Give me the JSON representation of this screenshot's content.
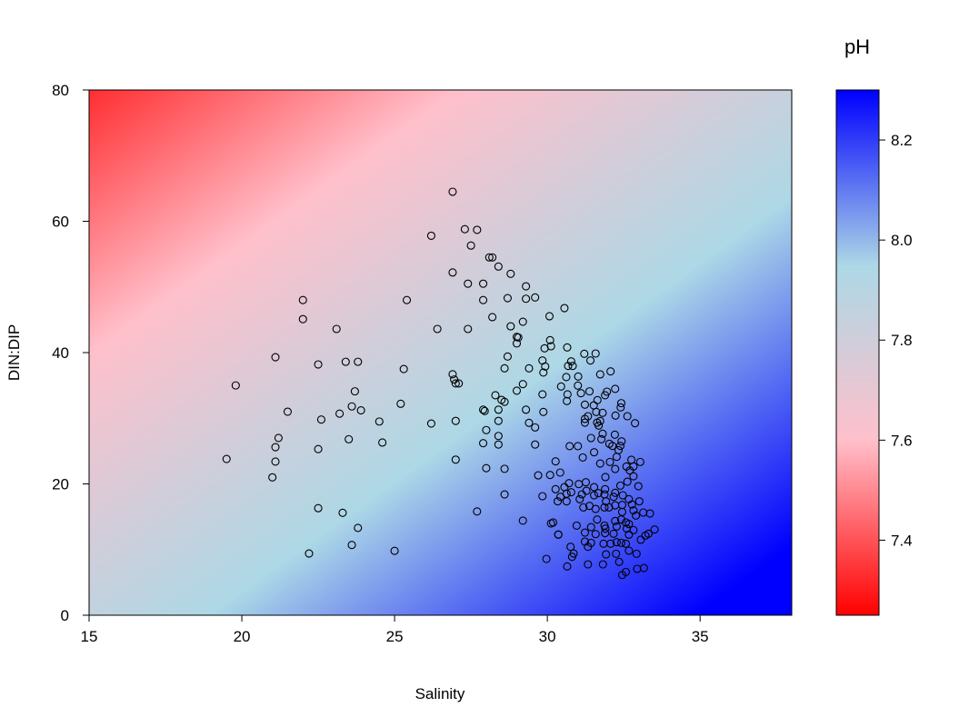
{
  "chart_data": {
    "type": "scatter",
    "title": "",
    "xlabel": "Salinity",
    "ylabel": "DIN:DIP",
    "xlim": [
      15,
      38
    ],
    "ylim": [
      0,
      80
    ],
    "xticks": [
      "15",
      "20",
      "25",
      "30",
      "35"
    ],
    "yticks": [
      "0",
      "20",
      "40",
      "60",
      "80"
    ],
    "grid": false,
    "marker": "open-circle",
    "background": {
      "type": "gradient-field",
      "variable": "pH",
      "description_colors": [
        "#FF0000",
        "#FFC0CB",
        "#ADD8E6",
        "#0000FF"
      ]
    },
    "colorbar": {
      "title": "pH",
      "range": [
        7.25,
        8.3
      ],
      "ticks": [
        "7.4",
        "7.6",
        "7.8",
        "8.0",
        "8.2"
      ],
      "colors": [
        "#FF0000",
        "#FFC0CB",
        "#ADD8E6",
        "#0000FF"
      ],
      "placement": "right"
    },
    "points": [
      [
        19.5,
        23.8
      ],
      [
        19.8,
        35.0
      ],
      [
        22.0,
        48.0
      ],
      [
        22.0,
        45.1
      ],
      [
        21.1,
        39.3
      ],
      [
        21.2,
        27.0
      ],
      [
        21.1,
        25.6
      ],
      [
        21.1,
        23.4
      ],
      [
        21.0,
        21.0
      ],
      [
        21.5,
        31.0
      ],
      [
        22.5,
        38.2
      ],
      [
        22.6,
        29.8
      ],
      [
        22.5,
        25.3
      ],
      [
        22.5,
        16.3
      ],
      [
        22.2,
        9.4
      ],
      [
        23.1,
        43.6
      ],
      [
        23.4,
        38.6
      ],
      [
        23.8,
        38.6
      ],
      [
        23.7,
        34.1
      ],
      [
        23.6,
        31.8
      ],
      [
        23.2,
        30.7
      ],
      [
        23.9,
        31.2
      ],
      [
        23.5,
        26.8
      ],
      [
        23.3,
        15.6
      ],
      [
        23.8,
        13.3
      ],
      [
        23.6,
        10.7
      ],
      [
        24.5,
        29.5
      ],
      [
        24.6,
        26.3
      ],
      [
        25.0,
        9.8
      ],
      [
        25.3,
        37.5
      ],
      [
        25.2,
        32.2
      ],
      [
        25.4,
        48.0
      ],
      [
        26.2,
        57.8
      ],
      [
        26.2,
        29.2
      ],
      [
        26.4,
        43.6
      ],
      [
        26.9,
        64.5
      ],
      [
        26.9,
        52.2
      ],
      [
        26.9,
        36.7
      ],
      [
        26.95,
        35.9
      ],
      [
        27.0,
        35.3
      ],
      [
        27.1,
        35.3
      ],
      [
        27.0,
        23.7
      ],
      [
        27.0,
        29.6
      ],
      [
        27.3,
        58.8
      ],
      [
        27.4,
        50.5
      ],
      [
        27.5,
        56.3
      ],
      [
        27.4,
        43.6
      ],
      [
        27.7,
        58.7
      ],
      [
        28.1,
        54.5
      ],
      [
        28.2,
        54.5
      ],
      [
        27.9,
        50.5
      ],
      [
        27.9,
        48.0
      ],
      [
        28.4,
        53.1
      ],
      [
        28.2,
        45.4
      ],
      [
        28.7,
        48.3
      ],
      [
        28.8,
        52.0
      ],
      [
        29.3,
        50.1
      ],
      [
        29.3,
        48.2
      ],
      [
        29.6,
        48.4
      ],
      [
        27.7,
        15.8
      ],
      [
        28.6,
        22.3
      ],
      [
        28.6,
        18.4
      ],
      [
        29.2,
        14.4
      ],
      [
        28.0,
        22.4
      ],
      [
        27.9,
        26.2
      ],
      [
        28.0,
        28.2
      ],
      [
        27.9,
        31.3
      ],
      [
        27.95,
        31.1
      ],
      [
        28.3,
        33.5
      ],
      [
        28.4,
        31.3
      ],
      [
        28.5,
        32.8
      ],
      [
        28.4,
        29.6
      ],
      [
        28.4,
        27.3
      ],
      [
        28.4,
        26.0
      ],
      [
        28.6,
        37.6
      ],
      [
        28.7,
        39.4
      ],
      [
        28.6,
        32.5
      ],
      [
        28.8,
        44.0
      ],
      [
        29.0,
        42.4
      ],
      [
        29.05,
        42.3
      ],
      [
        29.0,
        41.4
      ],
      [
        29.0,
        34.2
      ],
      [
        29.2,
        44.7
      ],
      [
        29.2,
        35.2
      ],
      [
        29.4,
        37.6
      ],
      [
        29.3,
        31.3
      ],
      [
        29.4,
        29.3
      ],
      [
        29.6,
        28.6
      ],
      [
        29.6,
        26.0
      ],
      [
        29.7,
        21.3
      ],
      [
        30.56,
        46.78
      ],
      [
        30.07,
        45.54
      ],
      [
        30.09,
        41.89
      ],
      [
        29.91,
        40.65
      ],
      [
        30.12,
        40.97
      ],
      [
        30.65,
        40.79
      ],
      [
        29.84,
        38.8
      ],
      [
        29.93,
        37.88
      ],
      [
        29.87,
        36.96
      ],
      [
        30.78,
        38.66
      ],
      [
        30.68,
        37.97
      ],
      [
        30.83,
        37.97
      ],
      [
        31.21,
        39.82
      ],
      [
        31.58,
        39.86
      ],
      [
        31.41,
        38.8
      ],
      [
        30.62,
        36.27
      ],
      [
        31.01,
        36.36
      ],
      [
        31.73,
        36.68
      ],
      [
        32.07,
        37.14
      ],
      [
        29.84,
        33.64
      ],
      [
        30.45,
        34.84
      ],
      [
        30.66,
        33.64
      ],
      [
        30.64,
        32.62
      ],
      [
        31.0,
        34.97
      ],
      [
        31.1,
        33.82
      ],
      [
        31.38,
        34.1
      ],
      [
        31.95,
        34.05
      ],
      [
        31.89,
        33.5
      ],
      [
        32.22,
        34.47
      ],
      [
        31.64,
        32.76
      ],
      [
        31.52,
        31.97
      ],
      [
        31.23,
        32.07
      ],
      [
        32.42,
        32.3
      ],
      [
        32.4,
        31.65
      ],
      [
        29.87,
        30.96
      ],
      [
        31.6,
        30.96
      ],
      [
        31.81,
        30.82
      ],
      [
        32.23,
        30.41
      ],
      [
        32.62,
        30.31
      ],
      [
        32.87,
        29.25
      ],
      [
        31.33,
        30.31
      ],
      [
        31.23,
        29.9
      ],
      [
        31.23,
        29.34
      ],
      [
        31.63,
        29.34
      ],
      [
        31.68,
        28.88
      ],
      [
        31.73,
        29.58
      ],
      [
        31.81,
        27.64
      ],
      [
        32.21,
        27.5
      ],
      [
        31.43,
        26.99
      ],
      [
        31.77,
        26.81
      ],
      [
        30.73,
        25.75
      ],
      [
        31.0,
        25.75
      ],
      [
        32.03,
        26.11
      ],
      [
        32.13,
        25.79
      ],
      [
        32.43,
        26.48
      ],
      [
        32.39,
        25.79
      ],
      [
        32.33,
        25.15
      ],
      [
        31.53,
        24.82
      ],
      [
        31.16,
        24.03
      ],
      [
        30.27,
        23.43
      ],
      [
        32.05,
        23.34
      ],
      [
        31.73,
        23.11
      ],
      [
        32.27,
        24.13
      ],
      [
        32.75,
        23.67
      ],
      [
        33.04,
        23.34
      ],
      [
        32.59,
        22.65
      ],
      [
        32.82,
        22.65
      ],
      [
        32.22,
        22.28
      ],
      [
        32.7,
        22.05
      ],
      [
        30.42,
        21.73
      ],
      [
        30.09,
        21.36
      ],
      [
        31.9,
        21.04
      ],
      [
        32.82,
        21.17
      ],
      [
        32.62,
        20.34
      ],
      [
        30.71,
        20.11
      ],
      [
        31.03,
        19.97
      ],
      [
        31.26,
        20.25
      ],
      [
        32.39,
        19.74
      ],
      [
        32.98,
        19.65
      ],
      [
        30.27,
        19.19
      ],
      [
        30.56,
        19.51
      ],
      [
        31.53,
        19.51
      ],
      [
        31.89,
        19.19
      ],
      [
        31.28,
        18.96
      ],
      [
        30.78,
        18.73
      ],
      [
        30.63,
        18.5
      ],
      [
        31.67,
        18.59
      ],
      [
        31.87,
        18.41
      ],
      [
        32.22,
        18.64
      ],
      [
        32.47,
        18.27
      ],
      [
        31.13,
        18.41
      ],
      [
        29.84,
        18.13
      ],
      [
        30.43,
        18.04
      ],
      [
        30.34,
        17.35
      ],
      [
        30.63,
        17.35
      ],
      [
        31.06,
        17.67
      ],
      [
        31.53,
        18.27
      ],
      [
        32.17,
        18.04
      ],
      [
        31.92,
        17.35
      ],
      [
        32.67,
        17.67
      ],
      [
        33.01,
        17.35
      ],
      [
        32.77,
        16.88
      ],
      [
        32.45,
        16.79
      ],
      [
        31.18,
        16.42
      ],
      [
        31.38,
        16.65
      ],
      [
        31.58,
        16.19
      ],
      [
        31.87,
        16.42
      ],
      [
        32.02,
        16.42
      ],
      [
        32.22,
        16.74
      ],
      [
        32.45,
        15.73
      ],
      [
        32.82,
        15.96
      ],
      [
        33.14,
        15.64
      ],
      [
        33.36,
        15.5
      ],
      [
        32.9,
        15.18
      ],
      [
        31.63,
        14.58
      ],
      [
        32.22,
        14.35
      ],
      [
        32.42,
        14.58
      ],
      [
        32.57,
        14.12
      ],
      [
        31.87,
        13.65
      ],
      [
        30.19,
        14.12
      ],
      [
        30.96,
        13.65
      ],
      [
        31.43,
        13.42
      ],
      [
        31.9,
        13.19
      ],
      [
        32.27,
        13.52
      ],
      [
        32.67,
        13.88
      ],
      [
        32.6,
        13.19
      ],
      [
        32.82,
        12.96
      ],
      [
        33.51,
        13.05
      ],
      [
        33.31,
        12.41
      ],
      [
        33.21,
        12.13
      ],
      [
        30.36,
        12.27
      ],
      [
        31.23,
        12.59
      ],
      [
        31.58,
        12.36
      ],
      [
        31.89,
        12.5
      ],
      [
        32.17,
        12.41
      ],
      [
        32.67,
        12.27
      ],
      [
        33.06,
        11.49
      ],
      [
        31.23,
        11.21
      ],
      [
        31.43,
        11.02
      ],
      [
        31.84,
        10.89
      ],
      [
        32.07,
        10.89
      ],
      [
        32.27,
        11.12
      ],
      [
        32.42,
        11.02
      ],
      [
        32.57,
        10.89
      ],
      [
        30.76,
        10.42
      ],
      [
        31.33,
        10.42
      ],
      [
        32.67,
        9.83
      ],
      [
        30.86,
        9.41
      ],
      [
        30.81,
        8.9
      ],
      [
        31.92,
        9.27
      ],
      [
        32.25,
        9.36
      ],
      [
        32.92,
        9.36
      ],
      [
        29.97,
        8.58
      ],
      [
        32.35,
        8.12
      ],
      [
        31.33,
        7.75
      ],
      [
        31.82,
        7.75
      ],
      [
        30.65,
        7.43
      ],
      [
        32.57,
        6.59
      ],
      [
        32.45,
        6.13
      ],
      [
        32.94,
        7.06
      ],
      [
        33.16,
        7.19
      ],
      [
        30.12,
        13.98
      ],
      [
        30.36,
        12.3
      ]
    ]
  }
}
